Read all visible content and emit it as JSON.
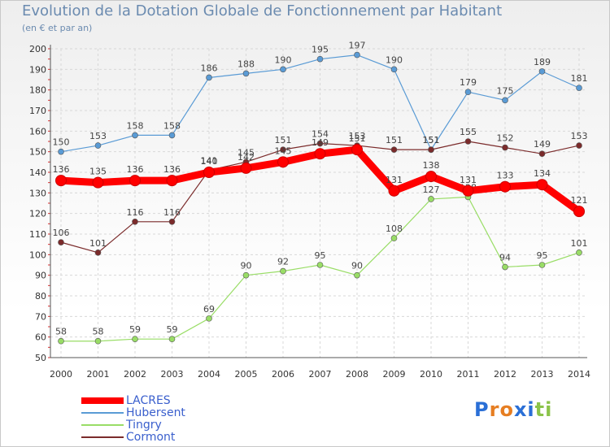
{
  "header": {
    "title": "Evolution de la Dotation Globale de Fonctionnement par Habitant",
    "subtitle": "(en € et par an)"
  },
  "chart_data": {
    "type": "line",
    "x": [
      "2000",
      "2001",
      "2002",
      "2003",
      "2004",
      "2005",
      "2006",
      "2007",
      "2008",
      "2009",
      "2010",
      "2011",
      "2012",
      "2013",
      "2014"
    ],
    "ylim": [
      50,
      200
    ],
    "yticks": [
      50,
      60,
      70,
      80,
      90,
      100,
      110,
      120,
      130,
      140,
      150,
      160,
      170,
      180,
      190,
      200
    ],
    "grid": true,
    "legend_position": "bottom-left",
    "series": [
      {
        "name": "LACRES",
        "color": "#ff0000",
        "values": [
          136,
          135,
          136,
          136,
          140,
          142,
          145,
          149,
          151,
          131,
          138,
          131,
          133,
          134,
          121
        ]
      },
      {
        "name": "Hubersent",
        "color": "#5a9bd5",
        "values": [
          150,
          153,
          158,
          158,
          186,
          188,
          190,
          195,
          197,
          190,
          151,
          179,
          175,
          189,
          181
        ]
      },
      {
        "name": "Tingry",
        "color": "#99dd66",
        "values": [
          58,
          58,
          59,
          59,
          69,
          90,
          92,
          95,
          90,
          108,
          127,
          128,
          94,
          95,
          101
        ]
      },
      {
        "name": "Cormont",
        "color": "#7b2b2b",
        "values": [
          106,
          101,
          116,
          116,
          141,
          145,
          151,
          154,
          153,
          151,
          151,
          155,
          152,
          149,
          153
        ]
      }
    ]
  },
  "logo": {
    "letters": [
      "P",
      "r",
      "o",
      "x",
      "i",
      "t",
      "i"
    ],
    "colors": [
      "#2a6fd6",
      "#e67e22",
      "#e67e22",
      "#2a6fd6",
      "#2a6fd6",
      "#8bc34a",
      "#8bc34a"
    ]
  }
}
